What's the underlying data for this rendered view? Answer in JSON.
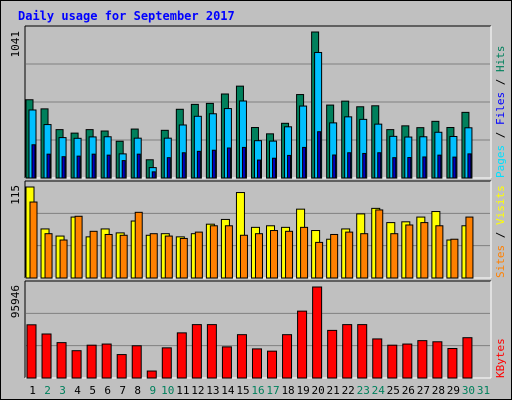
{
  "title": "Daily usage for September 2017",
  "colors": {
    "background": "#c0c0c0",
    "plot_bg": "#c0c0c0",
    "grid": "#808080",
    "hits": "#00805c",
    "files": "#00c0ff",
    "pages": "#00e0ff",
    "sites": "#ff8000",
    "visits": "#ffff00",
    "kbytes": "#ff0000",
    "title": "#0000ff"
  },
  "right_labels": {
    "top": [
      {
        "text": "Pages",
        "color": "#00e0ff"
      },
      {
        "text": " / ",
        "color": "#000000"
      },
      {
        "text": "Files",
        "color": "#0000ff"
      },
      {
        "text": " / ",
        "color": "#000000"
      },
      {
        "text": "Hits",
        "color": "#00805c"
      }
    ],
    "middle": [
      {
        "text": "Sites",
        "color": "#ff8000"
      },
      {
        "text": " / ",
        "color": "#000000"
      },
      {
        "text": "Visits",
        "color": "#ffff00"
      }
    ],
    "bottom": [
      {
        "text": "KBytes",
        "color": "#ff0000"
      }
    ]
  },
  "chart_data": [
    {
      "type": "bar",
      "panel": "hits-files-pages",
      "ylabel": "1041",
      "ylim": [
        0,
        1041
      ],
      "categories": [
        "1",
        "2",
        "3",
        "4",
        "5",
        "6",
        "7",
        "8",
        "9",
        "10",
        "11",
        "12",
        "13",
        "14",
        "15",
        "16",
        "17",
        "18",
        "19",
        "20",
        "21",
        "22",
        "23",
        "24",
        "25",
        "26",
        "27",
        "28",
        "29",
        "30",
        "31"
      ],
      "series": [
        {
          "name": "Hits",
          "values": [
            558,
            493,
            345,
            320,
            345,
            335,
            262,
            349,
            130,
            340,
            490,
            525,
            532,
            599,
            655,
            360,
            315,
            390,
            595,
            1041,
            520,
            548,
            508,
            515,
            345,
            372,
            359,
            404,
            360,
            468,
            null
          ]
        },
        {
          "name": "Files",
          "values": [
            485,
            381,
            288,
            283,
            293,
            294,
            172,
            284,
            74,
            284,
            378,
            440,
            458,
            495,
            549,
            266,
            263,
            365,
            513,
            895,
            393,
            436,
            418,
            384,
            297,
            292,
            294,
            326,
            296,
            358,
            null
          ]
        },
        {
          "name": "Pages",
          "values": [
            237,
            170,
            152,
            156,
            170,
            163,
            124,
            170,
            44,
            145,
            180,
            190,
            198,
            214,
            218,
            128,
            141,
            161,
            218,
            330,
            164,
            180,
            175,
            180,
            145,
            146,
            150,
            163,
            149,
            172,
            null
          ]
        }
      ]
    },
    {
      "type": "bar",
      "panel": "sites-visits",
      "ylabel": "115",
      "ylim": [
        0,
        115
      ],
      "categories": [
        "1",
        "2",
        "3",
        "4",
        "5",
        "6",
        "7",
        "8",
        "9",
        "10",
        "11",
        "12",
        "13",
        "14",
        "15",
        "16",
        "17",
        "18",
        "19",
        "20",
        "21",
        "22",
        "23",
        "24",
        "25",
        "26",
        "27",
        "28",
        "29",
        "30",
        "31"
      ],
      "series": [
        {
          "name": "Visits",
          "values": [
            115,
            62,
            53,
            77,
            52,
            62,
            57,
            72,
            54,
            56,
            52,
            56,
            68,
            74,
            108,
            64,
            66,
            64,
            87,
            60,
            49,
            62,
            81,
            88,
            70,
            71,
            77,
            84,
            48,
            66,
            null
          ]
        },
        {
          "name": "Sites",
          "values": [
            96,
            56,
            48,
            78,
            59,
            55,
            54,
            83,
            56,
            53,
            50,
            58,
            66,
            66,
            54,
            56,
            60,
            59,
            64,
            45,
            55,
            58,
            56,
            86,
            56,
            67,
            70,
            66,
            49,
            77,
            null
          ]
        }
      ]
    },
    {
      "type": "bar",
      "panel": "kbytes",
      "ylabel": "95946",
      "ylim": [
        0,
        95946
      ],
      "categories": [
        "1",
        "2",
        "3",
        "4",
        "5",
        "6",
        "7",
        "8",
        "9",
        "10",
        "11",
        "12",
        "13",
        "14",
        "15",
        "16",
        "17",
        "18",
        "19",
        "20",
        "21",
        "22",
        "23",
        "24",
        "25",
        "26",
        "27",
        "28",
        "29",
        "30",
        "31"
      ],
      "series": [
        {
          "name": "KBytes",
          "values": [
            56100,
            46400,
            37300,
            28800,
            34600,
            35800,
            24700,
            34000,
            7350,
            31800,
            47600,
            56300,
            56300,
            32800,
            45700,
            30700,
            28300,
            45700,
            70500,
            95946,
            50200,
            56300,
            56300,
            41200,
            34600,
            35800,
            39400,
            38200,
            31100,
            42500,
            null
          ]
        }
      ]
    }
  ],
  "x_axis": {
    "labels": [
      "1",
      "2",
      "3",
      "4",
      "5",
      "6",
      "7",
      "8",
      "9",
      "10",
      "11",
      "12",
      "13",
      "14",
      "15",
      "16",
      "17",
      "18",
      "19",
      "20",
      "21",
      "22",
      "23",
      "24",
      "25",
      "26",
      "27",
      "28",
      "29",
      "30",
      "31"
    ],
    "weekend_days": [
      "2",
      "3",
      "9",
      "10",
      "16",
      "17",
      "23",
      "24",
      "30",
      "31"
    ]
  }
}
